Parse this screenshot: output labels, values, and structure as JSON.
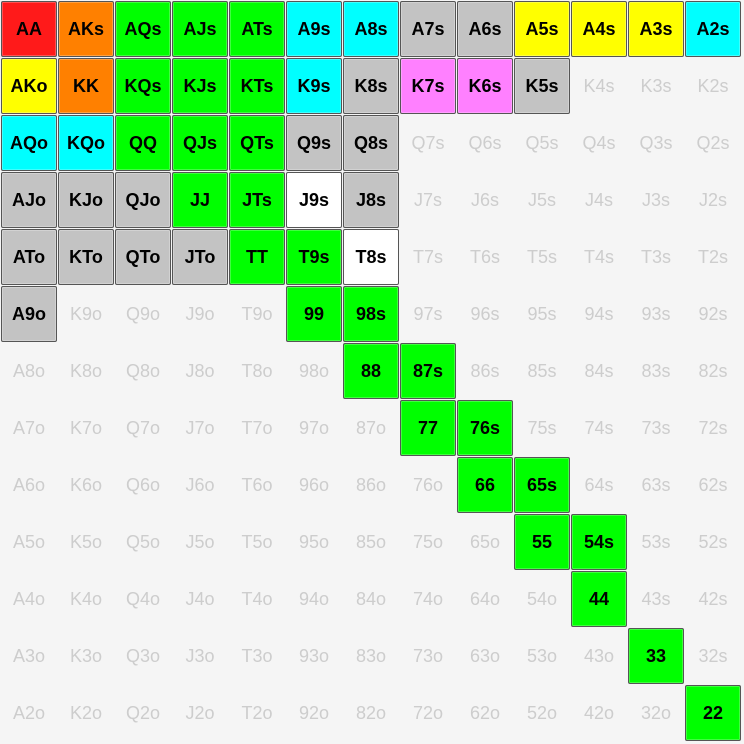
{
  "colors": {
    "red": "#ff1a1a",
    "orange": "#ff8000",
    "green": "#00ff00",
    "cyan": "#00ffff",
    "gray": "#c3c3c3",
    "yellow": "#ffff00",
    "pink": "#ff80ff",
    "white": "#ffffff"
  },
  "grid": [
    [
      {
        "l": "AA",
        "c": "red"
      },
      {
        "l": "AKs",
        "c": "orange"
      },
      {
        "l": "AQs",
        "c": "green"
      },
      {
        "l": "AJs",
        "c": "green"
      },
      {
        "l": "ATs",
        "c": "green"
      },
      {
        "l": "A9s",
        "c": "cyan"
      },
      {
        "l": "A8s",
        "c": "cyan"
      },
      {
        "l": "A7s",
        "c": "gray"
      },
      {
        "l": "A6s",
        "c": "gray"
      },
      {
        "l": "A5s",
        "c": "yellow"
      },
      {
        "l": "A4s",
        "c": "yellow"
      },
      {
        "l": "A3s",
        "c": "yellow"
      },
      {
        "l": "A2s",
        "c": "cyan"
      }
    ],
    [
      {
        "l": "AKo",
        "c": "yellow"
      },
      {
        "l": "KK",
        "c": "orange"
      },
      {
        "l": "KQs",
        "c": "green"
      },
      {
        "l": "KJs",
        "c": "green"
      },
      {
        "l": "KTs",
        "c": "green"
      },
      {
        "l": "K9s",
        "c": "cyan"
      },
      {
        "l": "K8s",
        "c": "gray"
      },
      {
        "l": "K7s",
        "c": "pink"
      },
      {
        "l": "K6s",
        "c": "pink"
      },
      {
        "l": "K5s",
        "c": "gray"
      },
      {
        "l": "K4s",
        "c": null
      },
      {
        "l": "K3s",
        "c": null
      },
      {
        "l": "K2s",
        "c": null
      }
    ],
    [
      {
        "l": "AQo",
        "c": "cyan"
      },
      {
        "l": "KQo",
        "c": "cyan"
      },
      {
        "l": "QQ",
        "c": "green"
      },
      {
        "l": "QJs",
        "c": "green"
      },
      {
        "l": "QTs",
        "c": "green"
      },
      {
        "l": "Q9s",
        "c": "gray"
      },
      {
        "l": "Q8s",
        "c": "gray"
      },
      {
        "l": "Q7s",
        "c": null
      },
      {
        "l": "Q6s",
        "c": null
      },
      {
        "l": "Q5s",
        "c": null
      },
      {
        "l": "Q4s",
        "c": null
      },
      {
        "l": "Q3s",
        "c": null
      },
      {
        "l": "Q2s",
        "c": null
      }
    ],
    [
      {
        "l": "AJo",
        "c": "gray"
      },
      {
        "l": "KJo",
        "c": "gray"
      },
      {
        "l": "QJo",
        "c": "gray"
      },
      {
        "l": "JJ",
        "c": "green"
      },
      {
        "l": "JTs",
        "c": "green"
      },
      {
        "l": "J9s",
        "c": "white"
      },
      {
        "l": "J8s",
        "c": "gray"
      },
      {
        "l": "J7s",
        "c": null
      },
      {
        "l": "J6s",
        "c": null
      },
      {
        "l": "J5s",
        "c": null
      },
      {
        "l": "J4s",
        "c": null
      },
      {
        "l": "J3s",
        "c": null
      },
      {
        "l": "J2s",
        "c": null
      }
    ],
    [
      {
        "l": "ATo",
        "c": "gray"
      },
      {
        "l": "KTo",
        "c": "gray"
      },
      {
        "l": "QTo",
        "c": "gray"
      },
      {
        "l": "JTo",
        "c": "gray"
      },
      {
        "l": "TT",
        "c": "green"
      },
      {
        "l": "T9s",
        "c": "green"
      },
      {
        "l": "T8s",
        "c": "white"
      },
      {
        "l": "T7s",
        "c": null
      },
      {
        "l": "T6s",
        "c": null
      },
      {
        "l": "T5s",
        "c": null
      },
      {
        "l": "T4s",
        "c": null
      },
      {
        "l": "T3s",
        "c": null
      },
      {
        "l": "T2s",
        "c": null
      }
    ],
    [
      {
        "l": "A9o",
        "c": "gray"
      },
      {
        "l": "K9o",
        "c": null
      },
      {
        "l": "Q9o",
        "c": null
      },
      {
        "l": "J9o",
        "c": null
      },
      {
        "l": "T9o",
        "c": null
      },
      {
        "l": "99",
        "c": "green"
      },
      {
        "l": "98s",
        "c": "green"
      },
      {
        "l": "97s",
        "c": null
      },
      {
        "l": "96s",
        "c": null
      },
      {
        "l": "95s",
        "c": null
      },
      {
        "l": "94s",
        "c": null
      },
      {
        "l": "93s",
        "c": null
      },
      {
        "l": "92s",
        "c": null
      }
    ],
    [
      {
        "l": "A8o",
        "c": null
      },
      {
        "l": "K8o",
        "c": null
      },
      {
        "l": "Q8o",
        "c": null
      },
      {
        "l": "J8o",
        "c": null
      },
      {
        "l": "T8o",
        "c": null
      },
      {
        "l": "98o",
        "c": null
      },
      {
        "l": "88",
        "c": "green"
      },
      {
        "l": "87s",
        "c": "green"
      },
      {
        "l": "86s",
        "c": null
      },
      {
        "l": "85s",
        "c": null
      },
      {
        "l": "84s",
        "c": null
      },
      {
        "l": "83s",
        "c": null
      },
      {
        "l": "82s",
        "c": null
      }
    ],
    [
      {
        "l": "A7o",
        "c": null
      },
      {
        "l": "K7o",
        "c": null
      },
      {
        "l": "Q7o",
        "c": null
      },
      {
        "l": "J7o",
        "c": null
      },
      {
        "l": "T7o",
        "c": null
      },
      {
        "l": "97o",
        "c": null
      },
      {
        "l": "87o",
        "c": null
      },
      {
        "l": "77",
        "c": "green"
      },
      {
        "l": "76s",
        "c": "green"
      },
      {
        "l": "75s",
        "c": null
      },
      {
        "l": "74s",
        "c": null
      },
      {
        "l": "73s",
        "c": null
      },
      {
        "l": "72s",
        "c": null
      }
    ],
    [
      {
        "l": "A6o",
        "c": null
      },
      {
        "l": "K6o",
        "c": null
      },
      {
        "l": "Q6o",
        "c": null
      },
      {
        "l": "J6o",
        "c": null
      },
      {
        "l": "T6o",
        "c": null
      },
      {
        "l": "96o",
        "c": null
      },
      {
        "l": "86o",
        "c": null
      },
      {
        "l": "76o",
        "c": null
      },
      {
        "l": "66",
        "c": "green"
      },
      {
        "l": "65s",
        "c": "green"
      },
      {
        "l": "64s",
        "c": null
      },
      {
        "l": "63s",
        "c": null
      },
      {
        "l": "62s",
        "c": null
      }
    ],
    [
      {
        "l": "A5o",
        "c": null
      },
      {
        "l": "K5o",
        "c": null
      },
      {
        "l": "Q5o",
        "c": null
      },
      {
        "l": "J5o",
        "c": null
      },
      {
        "l": "T5o",
        "c": null
      },
      {
        "l": "95o",
        "c": null
      },
      {
        "l": "85o",
        "c": null
      },
      {
        "l": "75o",
        "c": null
      },
      {
        "l": "65o",
        "c": null
      },
      {
        "l": "55",
        "c": "green"
      },
      {
        "l": "54s",
        "c": "green"
      },
      {
        "l": "53s",
        "c": null
      },
      {
        "l": "52s",
        "c": null
      }
    ],
    [
      {
        "l": "A4o",
        "c": null
      },
      {
        "l": "K4o",
        "c": null
      },
      {
        "l": "Q4o",
        "c": null
      },
      {
        "l": "J4o",
        "c": null
      },
      {
        "l": "T4o",
        "c": null
      },
      {
        "l": "94o",
        "c": null
      },
      {
        "l": "84o",
        "c": null
      },
      {
        "l": "74o",
        "c": null
      },
      {
        "l": "64o",
        "c": null
      },
      {
        "l": "54o",
        "c": null
      },
      {
        "l": "44",
        "c": "green"
      },
      {
        "l": "43s",
        "c": null
      },
      {
        "l": "42s",
        "c": null
      }
    ],
    [
      {
        "l": "A3o",
        "c": null
      },
      {
        "l": "K3o",
        "c": null
      },
      {
        "l": "Q3o",
        "c": null
      },
      {
        "l": "J3o",
        "c": null
      },
      {
        "l": "T3o",
        "c": null
      },
      {
        "l": "93o",
        "c": null
      },
      {
        "l": "83o",
        "c": null
      },
      {
        "l": "73o",
        "c": null
      },
      {
        "l": "63o",
        "c": null
      },
      {
        "l": "53o",
        "c": null
      },
      {
        "l": "43o",
        "c": null
      },
      {
        "l": "33",
        "c": "green"
      },
      {
        "l": "32s",
        "c": null
      }
    ],
    [
      {
        "l": "A2o",
        "c": null
      },
      {
        "l": "K2o",
        "c": null
      },
      {
        "l": "Q2o",
        "c": null
      },
      {
        "l": "J2o",
        "c": null
      },
      {
        "l": "T2o",
        "c": null
      },
      {
        "l": "92o",
        "c": null
      },
      {
        "l": "82o",
        "c": null
      },
      {
        "l": "72o",
        "c": null
      },
      {
        "l": "62o",
        "c": null
      },
      {
        "l": "52o",
        "c": null
      },
      {
        "l": "42o",
        "c": null
      },
      {
        "l": "32o",
        "c": null
      },
      {
        "l": "22",
        "c": "green"
      }
    ]
  ]
}
